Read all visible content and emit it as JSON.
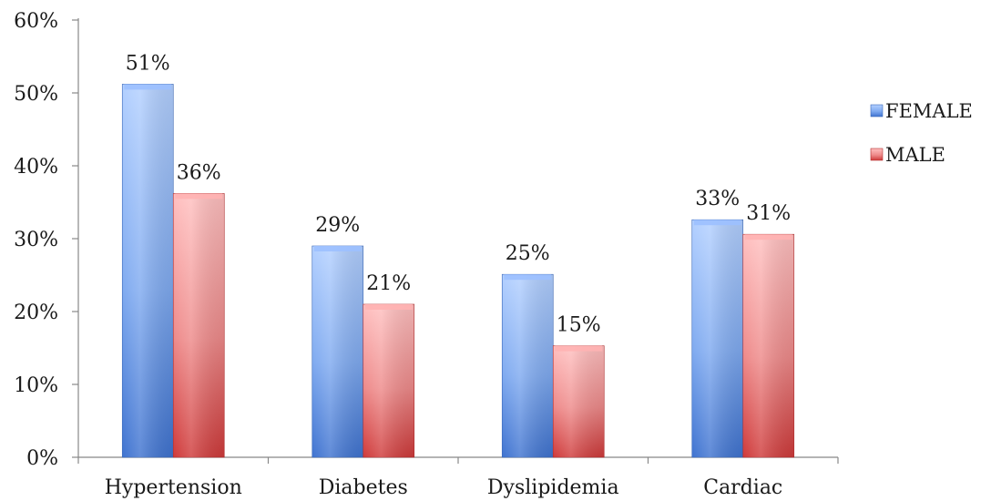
{
  "chart_data": {
    "type": "bar",
    "title": "",
    "xlabel": "",
    "ylabel": "",
    "categories": [
      "Hypertension",
      "Diabetes",
      "Dyslipidemia",
      "Cardiac"
    ],
    "series": [
      {
        "name": "FEMALE",
        "values": [
          51.2,
          29.0,
          25.1,
          32.6
        ],
        "labels": [
          "51%",
          "29%",
          "25%",
          "33%"
        ],
        "color": "#4a7fd6"
      },
      {
        "name": "MALE",
        "values": [
          36.2,
          21.0,
          15.3,
          30.6
        ],
        "labels": [
          "36%",
          "21%",
          "15%",
          "31%"
        ],
        "color": "#d94848"
      }
    ],
    "ylim": [
      0,
      60
    ],
    "yticks": [
      0,
      10,
      20,
      30,
      40,
      50,
      60
    ],
    "ytick_labels": [
      "0%",
      "10%",
      "20%",
      "30%",
      "40%",
      "50%",
      "60%"
    ],
    "grid": false,
    "legend": "right"
  }
}
